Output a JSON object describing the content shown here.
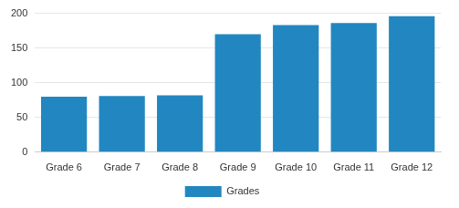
{
  "chart_data": {
    "type": "bar",
    "categories": [
      "Grade 6",
      "Grade 7",
      "Grade 8",
      "Grade 9",
      "Grade 10",
      "Grade 11",
      "Grade 12"
    ],
    "series": [
      {
        "name": "Grades",
        "color": "#2287c0",
        "values": [
          80,
          81,
          82,
          170,
          183,
          186,
          196
        ]
      }
    ],
    "ylim": [
      0,
      200
    ],
    "yticks": [
      0,
      50,
      100,
      150,
      200
    ],
    "grid": true,
    "legend": "bottom"
  }
}
